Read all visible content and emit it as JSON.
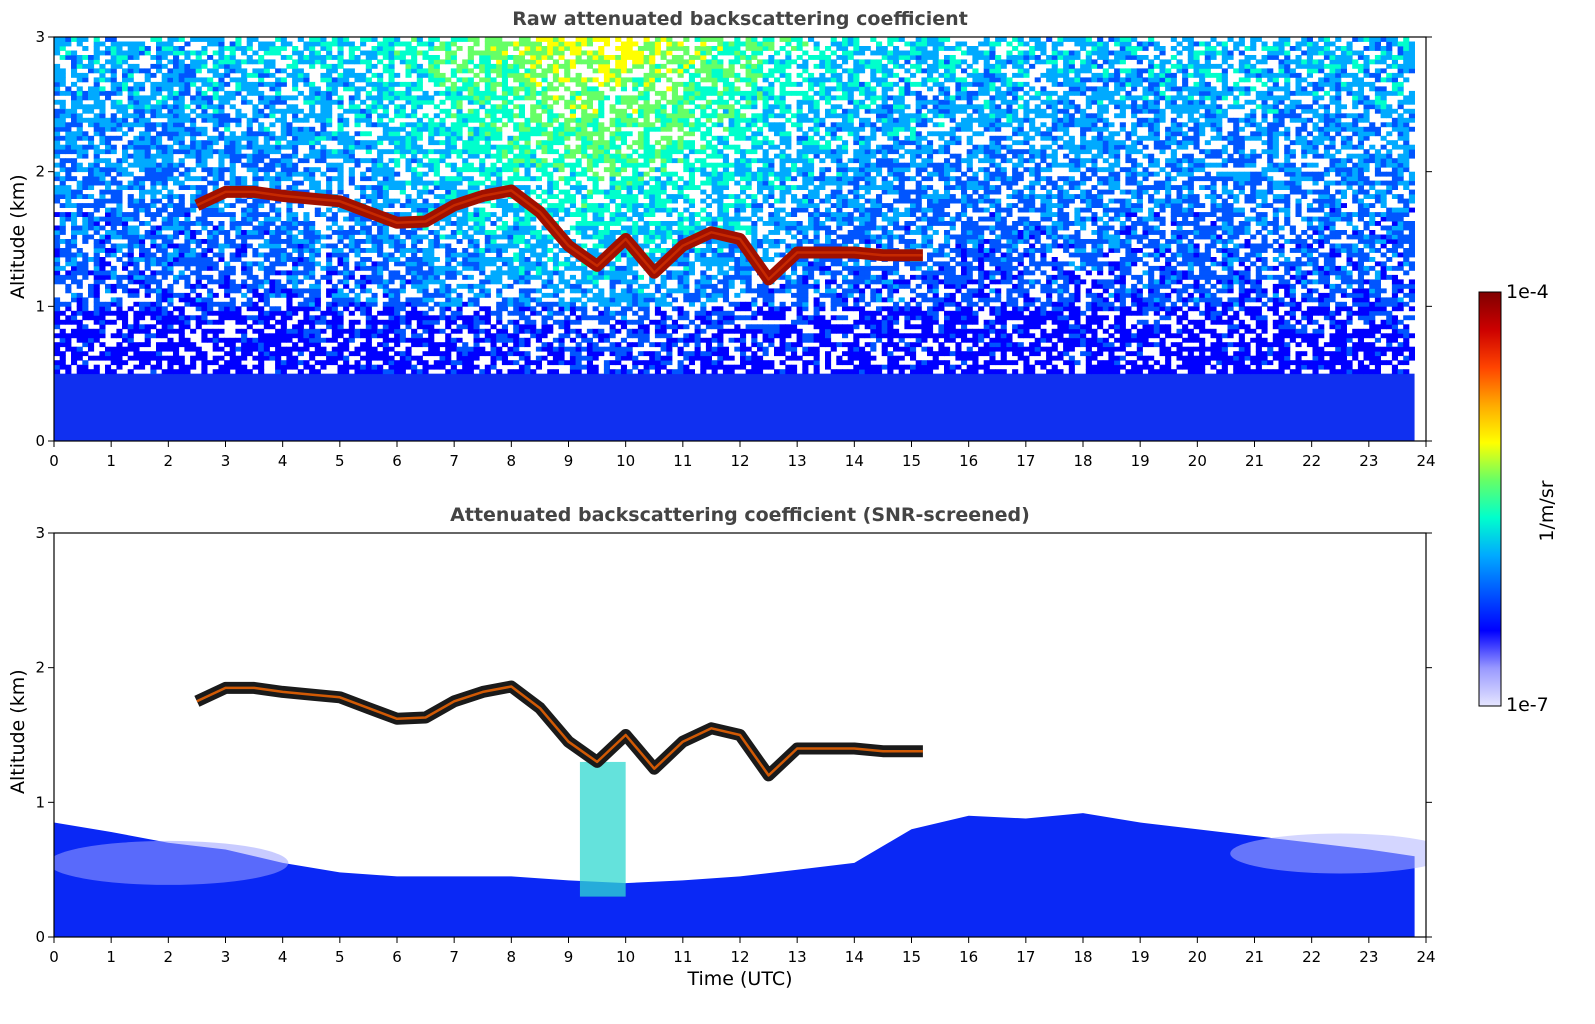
{
  "chart_data": [
    {
      "type": "heatmap",
      "title": "Raw attenuated backscattering coefficient",
      "xlabel": "",
      "ylabel": "Altitude (km)",
      "xlim": [
        0,
        24
      ],
      "ylim": [
        0,
        3
      ],
      "xticks": [
        "0",
        "1",
        "2",
        "3",
        "4",
        "5",
        "6",
        "7",
        "8",
        "9",
        "10",
        "11",
        "12",
        "13",
        "14",
        "15",
        "16",
        "17",
        "18",
        "19",
        "20",
        "21",
        "22",
        "23",
        "24"
      ],
      "yticks": [
        "0",
        "1",
        "2",
        "3"
      ],
      "cloud_layer": {
        "time": [
          2.5,
          3.0,
          3.5,
          4.0,
          4.5,
          5.0,
          5.5,
          6.0,
          6.5,
          7.0,
          7.5,
          8.0,
          8.5,
          9.0,
          9.5,
          10.0,
          10.5,
          11.0,
          11.5,
          12.0,
          12.5,
          13.0,
          13.5,
          14.0,
          14.5,
          15.0,
          15.2
        ],
        "altitude_km": [
          1.75,
          1.85,
          1.85,
          1.82,
          1.8,
          1.78,
          1.7,
          1.62,
          1.63,
          1.75,
          1.82,
          1.86,
          1.7,
          1.45,
          1.3,
          1.5,
          1.25,
          1.45,
          1.55,
          1.5,
          1.2,
          1.4,
          1.4,
          1.4,
          1.38,
          1.38,
          1.38
        ]
      }
    },
    {
      "type": "heatmap",
      "title": "Attenuated backscattering coefficient (SNR-screened)",
      "xlabel": "Time (UTC)",
      "ylabel": "Altitude (km)",
      "xlim": [
        0,
        24
      ],
      "ylim": [
        0,
        3
      ],
      "xticks": [
        "0",
        "1",
        "2",
        "3",
        "4",
        "5",
        "6",
        "7",
        "8",
        "9",
        "10",
        "11",
        "12",
        "13",
        "14",
        "15",
        "16",
        "17",
        "18",
        "19",
        "20",
        "21",
        "22",
        "23",
        "24"
      ],
      "yticks": [
        "0",
        "1",
        "2",
        "3"
      ],
      "boundary_layer_top": {
        "time": [
          0,
          1,
          2,
          3,
          4,
          5,
          6,
          7,
          8,
          9,
          10,
          11,
          12,
          13,
          14,
          15,
          16,
          17,
          18,
          19,
          20,
          21,
          22,
          23,
          23.8
        ],
        "altitude_km": [
          0.85,
          0.78,
          0.7,
          0.65,
          0.55,
          0.48,
          0.45,
          0.45,
          0.45,
          0.42,
          0.4,
          0.42,
          0.45,
          0.5,
          0.55,
          0.8,
          0.9,
          0.88,
          0.92,
          0.85,
          0.8,
          0.75,
          0.7,
          0.65,
          0.6
        ]
      }
    }
  ],
  "colorbar": {
    "label": "1/m/sr",
    "min_label": "1e-7",
    "max_label": "1e-4",
    "colors": [
      "#e6e6ff",
      "#9999ff",
      "#0000ff",
      "#0055ff",
      "#00aaff",
      "#00ffcc",
      "#66ff66",
      "#ffff00",
      "#ffaa00",
      "#ff4400",
      "#cc0000",
      "#800000"
    ]
  }
}
